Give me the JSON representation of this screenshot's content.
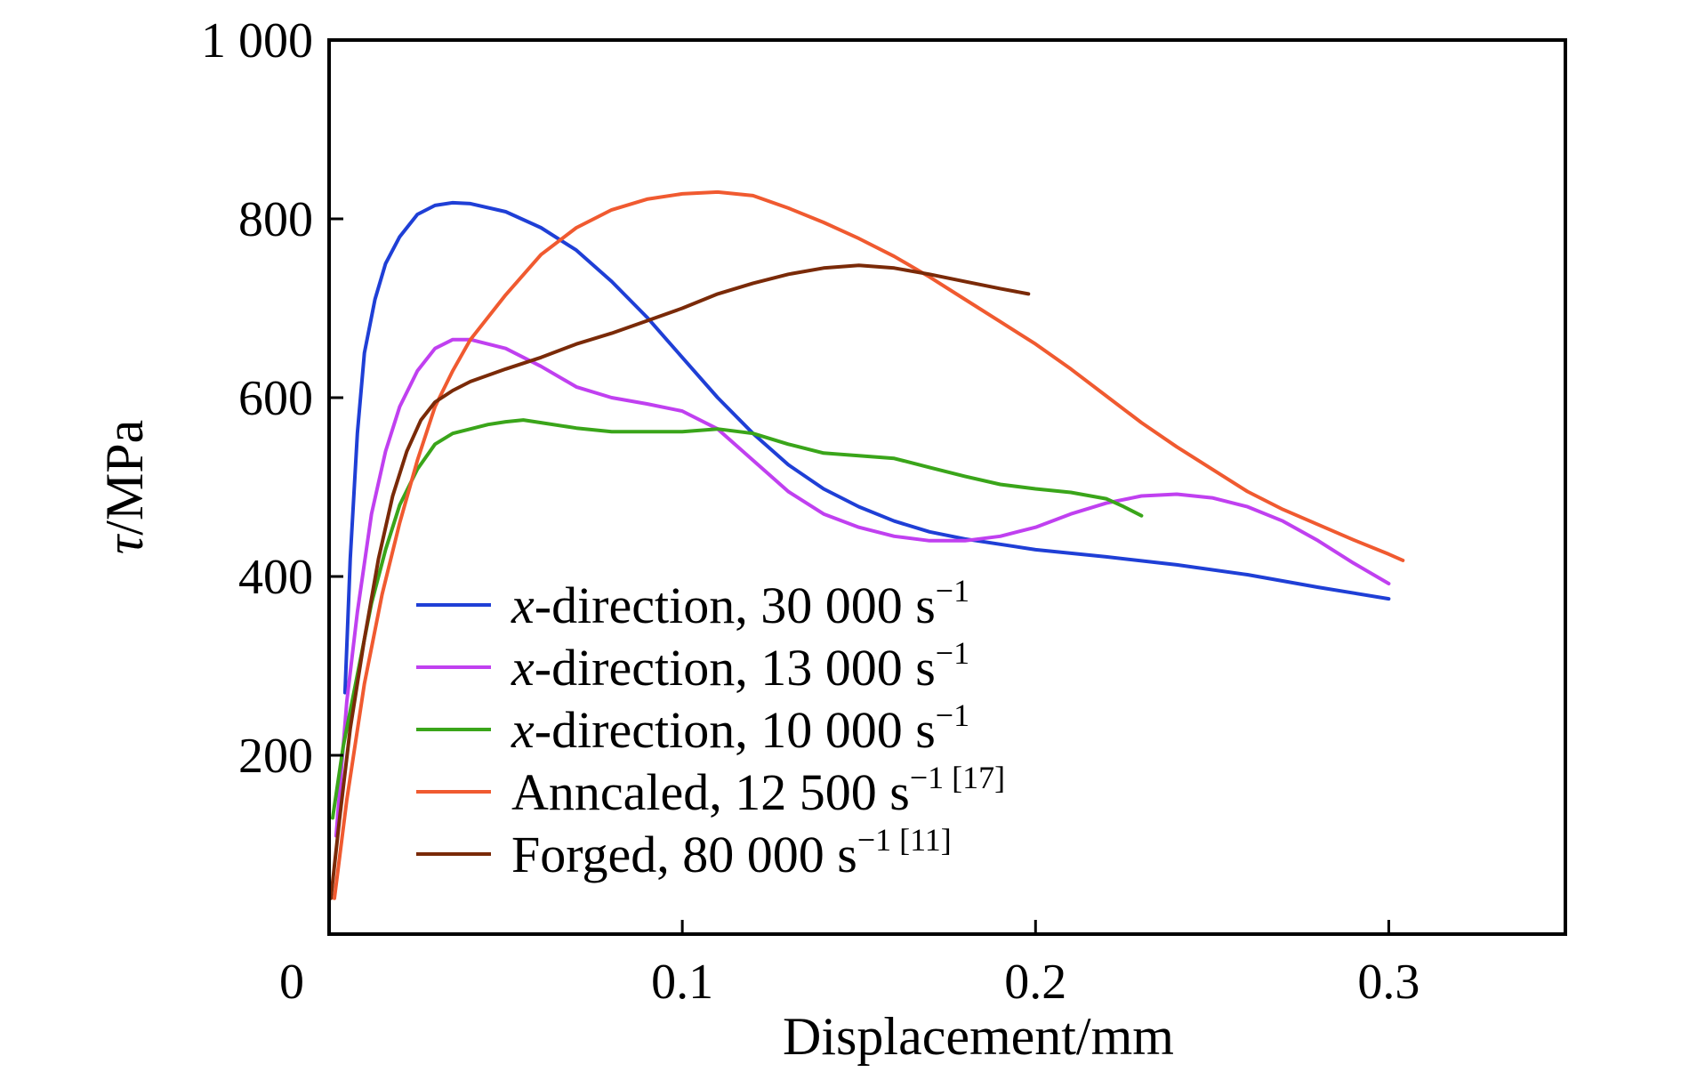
{
  "chart_data": {
    "type": "line",
    "title": "",
    "xlabel": "Displacement/mm",
    "ylabel_symbol": "τ",
    "ylabel_unit": "/MPa",
    "xlim": [
      0,
      0.35
    ],
    "ylim": [
      0,
      1000
    ],
    "x_ticks": [
      {
        "value": 0,
        "label": "0"
      },
      {
        "value": 0.1,
        "label": "0.1"
      },
      {
        "value": 0.2,
        "label": "0.2"
      },
      {
        "value": 0.3,
        "label": "0.3"
      }
    ],
    "y_ticks": [
      {
        "value": 200,
        "label": "200"
      },
      {
        "value": 400,
        "label": "400"
      },
      {
        "value": 600,
        "label": "600"
      },
      {
        "value": 800,
        "label": "800"
      },
      {
        "value": 1000,
        "label": "1 000"
      }
    ],
    "grid": false,
    "legend_position": "bottom-left",
    "series": [
      {
        "name": "x-direction, 30 000 s",
        "name_italic": "x",
        "name_rest": "-direction, 30 000 s",
        "name_sup": "−1",
        "color": "#1f3fd6",
        "points": [
          [
            0.0045,
            270
          ],
          [
            0.006,
            420
          ],
          [
            0.008,
            560
          ],
          [
            0.01,
            650
          ],
          [
            0.013,
            710
          ],
          [
            0.016,
            750
          ],
          [
            0.02,
            780
          ],
          [
            0.025,
            805
          ],
          [
            0.03,
            815
          ],
          [
            0.035,
            818
          ],
          [
            0.04,
            817
          ],
          [
            0.05,
            808
          ],
          [
            0.06,
            790
          ],
          [
            0.07,
            765
          ],
          [
            0.08,
            730
          ],
          [
            0.09,
            690
          ],
          [
            0.1,
            645
          ],
          [
            0.11,
            600
          ],
          [
            0.12,
            560
          ],
          [
            0.13,
            525
          ],
          [
            0.14,
            498
          ],
          [
            0.15,
            478
          ],
          [
            0.16,
            462
          ],
          [
            0.17,
            450
          ],
          [
            0.18,
            442
          ],
          [
            0.19,
            436
          ],
          [
            0.2,
            430
          ],
          [
            0.22,
            422
          ],
          [
            0.24,
            413
          ],
          [
            0.26,
            402
          ],
          [
            0.28,
            388
          ],
          [
            0.3,
            375
          ]
        ]
      },
      {
        "name": "x-direction, 13 000 s",
        "name_italic": "x",
        "name_rest": "-direction, 13 000 s",
        "name_sup": "−1",
        "color": "#c040f0",
        "points": [
          [
            0.002,
            110
          ],
          [
            0.005,
            260
          ],
          [
            0.008,
            360
          ],
          [
            0.012,
            470
          ],
          [
            0.016,
            540
          ],
          [
            0.02,
            590
          ],
          [
            0.025,
            630
          ],
          [
            0.03,
            655
          ],
          [
            0.035,
            665
          ],
          [
            0.04,
            665
          ],
          [
            0.05,
            655
          ],
          [
            0.06,
            635
          ],
          [
            0.07,
            612
          ],
          [
            0.08,
            600
          ],
          [
            0.09,
            593
          ],
          [
            0.1,
            585
          ],
          [
            0.11,
            565
          ],
          [
            0.12,
            530
          ],
          [
            0.13,
            495
          ],
          [
            0.14,
            470
          ],
          [
            0.15,
            455
          ],
          [
            0.16,
            445
          ],
          [
            0.17,
            440
          ],
          [
            0.18,
            440
          ],
          [
            0.19,
            445
          ],
          [
            0.2,
            455
          ],
          [
            0.21,
            470
          ],
          [
            0.22,
            482
          ],
          [
            0.23,
            490
          ],
          [
            0.24,
            492
          ],
          [
            0.25,
            488
          ],
          [
            0.26,
            478
          ],
          [
            0.27,
            462
          ],
          [
            0.28,
            440
          ],
          [
            0.29,
            415
          ],
          [
            0.3,
            392
          ]
        ]
      },
      {
        "name": "x-direction, 10 000 s",
        "name_italic": "x",
        "name_rest": "-direction, 10 000 s",
        "name_sup": "−1",
        "color": "#3aa51a",
        "points": [
          [
            0.001,
            130
          ],
          [
            0.004,
            210
          ],
          [
            0.008,
            290
          ],
          [
            0.012,
            370
          ],
          [
            0.016,
            430
          ],
          [
            0.02,
            480
          ],
          [
            0.025,
            520
          ],
          [
            0.03,
            548
          ],
          [
            0.035,
            560
          ],
          [
            0.04,
            565
          ],
          [
            0.045,
            570
          ],
          [
            0.05,
            573
          ],
          [
            0.055,
            575
          ],
          [
            0.06,
            572
          ],
          [
            0.07,
            566
          ],
          [
            0.08,
            562
          ],
          [
            0.09,
            562
          ],
          [
            0.1,
            562
          ],
          [
            0.11,
            565
          ],
          [
            0.12,
            560
          ],
          [
            0.13,
            548
          ],
          [
            0.14,
            538
          ],
          [
            0.15,
            535
          ],
          [
            0.16,
            532
          ],
          [
            0.17,
            522
          ],
          [
            0.18,
            512
          ],
          [
            0.19,
            503
          ],
          [
            0.2,
            498
          ],
          [
            0.21,
            494
          ],
          [
            0.22,
            487
          ],
          [
            0.225,
            478
          ],
          [
            0.23,
            468
          ]
        ]
      },
      {
        "name": "Anncaled, 12 500 s",
        "name_italic": "",
        "name_rest": "Anncaled, 12 500 s",
        "name_sup": "−1 [17]",
        "color": "#f05a30",
        "points": [
          [
            0.0015,
            40
          ],
          [
            0.005,
            150
          ],
          [
            0.01,
            280
          ],
          [
            0.015,
            380
          ],
          [
            0.02,
            460
          ],
          [
            0.025,
            530
          ],
          [
            0.03,
            590
          ],
          [
            0.035,
            630
          ],
          [
            0.04,
            665
          ],
          [
            0.05,
            715
          ],
          [
            0.06,
            760
          ],
          [
            0.07,
            790
          ],
          [
            0.08,
            810
          ],
          [
            0.09,
            822
          ],
          [
            0.1,
            828
          ],
          [
            0.11,
            830
          ],
          [
            0.12,
            826
          ],
          [
            0.13,
            812
          ],
          [
            0.14,
            796
          ],
          [
            0.15,
            778
          ],
          [
            0.16,
            758
          ],
          [
            0.17,
            735
          ],
          [
            0.18,
            710
          ],
          [
            0.19,
            685
          ],
          [
            0.2,
            660
          ],
          [
            0.21,
            632
          ],
          [
            0.22,
            602
          ],
          [
            0.23,
            572
          ],
          [
            0.24,
            545
          ],
          [
            0.25,
            520
          ],
          [
            0.26,
            495
          ],
          [
            0.27,
            475
          ],
          [
            0.28,
            458
          ],
          [
            0.29,
            441
          ],
          [
            0.3,
            425
          ],
          [
            0.304,
            418
          ]
        ]
      },
      {
        "name": "Forged, 80 000 s",
        "name_italic": "",
        "name_rest": "Forged, 80 000 s",
        "name_sup": "−1 [11]",
        "color": "#7a2a08",
        "points": [
          [
            0.0005,
            40
          ],
          [
            0.003,
            130
          ],
          [
            0.006,
            230
          ],
          [
            0.01,
            330
          ],
          [
            0.014,
            420
          ],
          [
            0.018,
            490
          ],
          [
            0.022,
            540
          ],
          [
            0.026,
            575
          ],
          [
            0.03,
            595
          ],
          [
            0.035,
            608
          ],
          [
            0.04,
            618
          ],
          [
            0.05,
            632
          ],
          [
            0.06,
            645
          ],
          [
            0.07,
            660
          ],
          [
            0.08,
            672
          ],
          [
            0.09,
            686
          ],
          [
            0.1,
            700
          ],
          [
            0.11,
            716
          ],
          [
            0.12,
            728
          ],
          [
            0.13,
            738
          ],
          [
            0.14,
            745
          ],
          [
            0.15,
            748
          ],
          [
            0.16,
            745
          ],
          [
            0.17,
            738
          ],
          [
            0.18,
            730
          ],
          [
            0.19,
            722
          ],
          [
            0.198,
            716
          ]
        ]
      }
    ]
  }
}
